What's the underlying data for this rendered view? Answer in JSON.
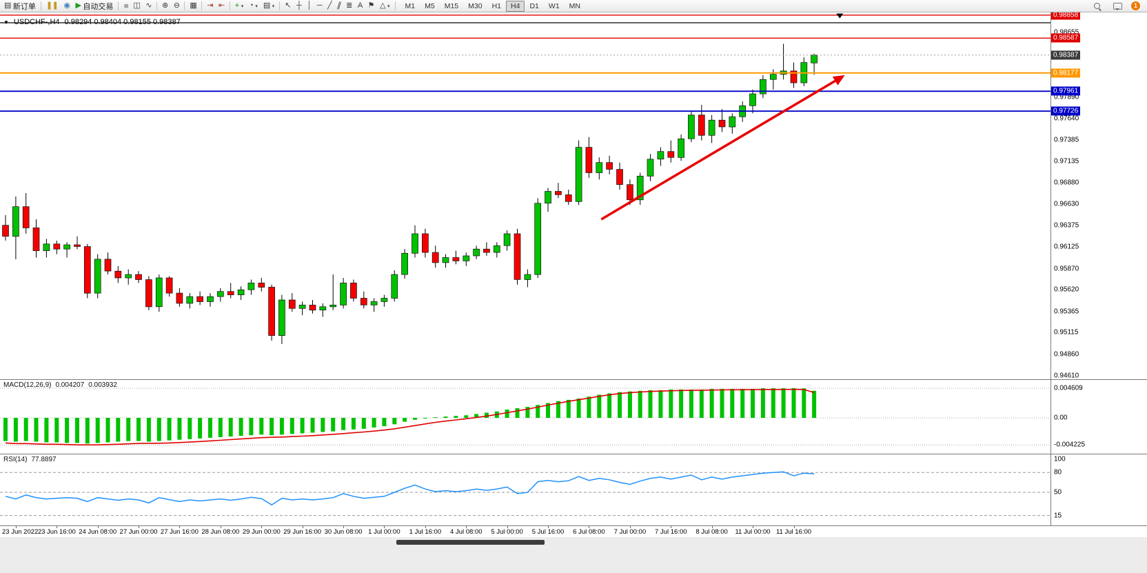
{
  "toolbar": {
    "new_order_label": "新订单",
    "autotrading_label": "自动交易",
    "notification_count": "1",
    "window_icons": [
      {
        "name": "chart-window-icon",
        "glyph": "❚❚",
        "color": "#c8971e"
      },
      {
        "name": "market-watch-icon",
        "glyph": "◉",
        "color": "#3f7fbf"
      }
    ],
    "icon_groups": [
      [
        {
          "name": "bar-chart-icon",
          "glyph": "≡",
          "rot": true
        },
        {
          "name": "candlestick-chart-icon",
          "glyph": "◫"
        },
        {
          "name": "line-chart-icon",
          "glyph": "∿"
        }
      ],
      [
        {
          "name": "zoom-in-icon",
          "glyph": "⊕"
        },
        {
          "name": "zoom-out-icon",
          "glyph": "⊖"
        }
      ],
      [
        {
          "name": "tile-windows-icon",
          "glyph": "▦"
        }
      ],
      [
        {
          "name": "auto-scroll-icon",
          "glyph": "⇥",
          "color": "#a33535"
        },
        {
          "name": "chart-shift-icon",
          "glyph": "⇤",
          "color": "#a33535"
        }
      ],
      [
        {
          "name": "indicators-icon",
          "glyph": "+",
          "color": "#0a8a0a",
          "dropdown": true
        },
        {
          "name": "periods-icon",
          "glyph": "◔",
          "dropdown": true
        },
        {
          "name": "templates-icon",
          "glyph": "▤",
          "dropdown": true
        }
      ],
      [
        {
          "name": "cursor-icon",
          "glyph": "↖"
        },
        {
          "name": "crosshair-icon",
          "glyph": "┼"
        },
        {
          "name": "vertical-line-icon",
          "glyph": "│"
        },
        {
          "name": "horizontal-line-icon",
          "glyph": "─"
        },
        {
          "name": "trendline-icon",
          "glyph": "╱"
        },
        {
          "name": "channel-icon",
          "glyph": "∥",
          "tilt": true
        },
        {
          "name": "fibonacci-icon",
          "glyph": "≣"
        },
        {
          "name": "text-icon",
          "glyph": "A"
        },
        {
          "name": "arrows-icon",
          "glyph": "⚑"
        },
        {
          "name": "shapes-icon",
          "glyph": "△",
          "dropdown": true
        }
      ]
    ],
    "timeframes": [
      "M1",
      "M5",
      "M15",
      "M30",
      "H1",
      "H4",
      "D1",
      "W1",
      "MN"
    ],
    "active_timeframe": "H4"
  },
  "chart": {
    "title": "USDCHF-,H4",
    "ohlc_text": "0.98294 0.98404 0.98155 0.98387"
  },
  "chart_data": {
    "type": "candlestick",
    "symbol": "USDCHF-",
    "timeframe": "H4",
    "current_ohlc": {
      "open": 0.98294,
      "high": 0.98404,
      "low": 0.98155,
      "close": 0.98387
    },
    "price_range": {
      "max": 0.9889,
      "min": 0.94565
    },
    "colors": {
      "bull": "#00c200",
      "bear": "#f40000",
      "wick": "#000000",
      "background": "#ffffff"
    },
    "candles": [
      [
        0.9638,
        0.965,
        0.962,
        0.9625
      ],
      [
        0.9625,
        0.9672,
        0.9598,
        0.966
      ],
      [
        0.966,
        0.9676,
        0.9628,
        0.9635
      ],
      [
        0.9635,
        0.9645,
        0.96,
        0.9608
      ],
      [
        0.9608,
        0.9622,
        0.96,
        0.9616
      ],
      [
        0.9616,
        0.962,
        0.9604,
        0.961
      ],
      [
        0.961,
        0.9618,
        0.96,
        0.9615
      ],
      [
        0.9615,
        0.9625,
        0.961,
        0.9613
      ],
      [
        0.9613,
        0.9616,
        0.9552,
        0.9558
      ],
      [
        0.9558,
        0.9604,
        0.9552,
        0.9598
      ],
      [
        0.9598,
        0.9606,
        0.958,
        0.9584
      ],
      [
        0.9584,
        0.959,
        0.957,
        0.9576
      ],
      [
        0.9576,
        0.9586,
        0.9568,
        0.958
      ],
      [
        0.958,
        0.9584,
        0.957,
        0.9574
      ],
      [
        0.9574,
        0.9578,
        0.9538,
        0.9542
      ],
      [
        0.9542,
        0.958,
        0.9536,
        0.9576
      ],
      [
        0.9576,
        0.9578,
        0.9554,
        0.9558
      ],
      [
        0.9558,
        0.9564,
        0.9542,
        0.9546
      ],
      [
        0.9546,
        0.9558,
        0.954,
        0.9554
      ],
      [
        0.9554,
        0.956,
        0.9544,
        0.9548
      ],
      [
        0.9548,
        0.9558,
        0.9542,
        0.9554
      ],
      [
        0.9554,
        0.9564,
        0.9548,
        0.956
      ],
      [
        0.956,
        0.957,
        0.9552,
        0.9556
      ],
      [
        0.9556,
        0.9566,
        0.955,
        0.9562
      ],
      [
        0.9562,
        0.9574,
        0.9556,
        0.957
      ],
      [
        0.957,
        0.9576,
        0.956,
        0.9565
      ],
      [
        0.9565,
        0.9568,
        0.9502,
        0.9508
      ],
      [
        0.9508,
        0.9556,
        0.9498,
        0.955
      ],
      [
        0.955,
        0.9558,
        0.9536,
        0.954
      ],
      [
        0.954,
        0.9548,
        0.9532,
        0.9544
      ],
      [
        0.9544,
        0.955,
        0.9534,
        0.9538
      ],
      [
        0.9538,
        0.9546,
        0.953,
        0.9542
      ],
      [
        0.9542,
        0.958,
        0.9538,
        0.9544
      ],
      [
        0.9544,
        0.9576,
        0.954,
        0.957
      ],
      [
        0.957,
        0.9574,
        0.9548,
        0.9552
      ],
      [
        0.9552,
        0.956,
        0.954,
        0.9544
      ],
      [
        0.9544,
        0.9552,
        0.9536,
        0.9548
      ],
      [
        0.9548,
        0.9556,
        0.9542,
        0.9552
      ],
      [
        0.9552,
        0.9585,
        0.9548,
        0.958
      ],
      [
        0.958,
        0.961,
        0.9575,
        0.9605
      ],
      [
        0.9605,
        0.9638,
        0.96,
        0.9628
      ],
      [
        0.9628,
        0.9634,
        0.96,
        0.9606
      ],
      [
        0.9606,
        0.9614,
        0.9588,
        0.9594
      ],
      [
        0.9594,
        0.9604,
        0.9588,
        0.96
      ],
      [
        0.96,
        0.9608,
        0.9592,
        0.9596
      ],
      [
        0.9596,
        0.9606,
        0.959,
        0.9602
      ],
      [
        0.9602,
        0.9614,
        0.9598,
        0.961
      ],
      [
        0.961,
        0.9618,
        0.9602,
        0.9606
      ],
      [
        0.9606,
        0.9618,
        0.96,
        0.9614
      ],
      [
        0.9614,
        0.9632,
        0.9608,
        0.9628
      ],
      [
        0.9628,
        0.9634,
        0.9568,
        0.9574
      ],
      [
        0.9574,
        0.9586,
        0.9565,
        0.958
      ],
      [
        0.958,
        0.967,
        0.9576,
        0.9664
      ],
      [
        0.9664,
        0.9682,
        0.9654,
        0.9678
      ],
      [
        0.9678,
        0.9688,
        0.967,
        0.9674
      ],
      [
        0.9674,
        0.968,
        0.9662,
        0.9666
      ],
      [
        0.9666,
        0.9738,
        0.9662,
        0.973
      ],
      [
        0.973,
        0.9742,
        0.9694,
        0.97
      ],
      [
        0.97,
        0.9718,
        0.9692,
        0.9712
      ],
      [
        0.9712,
        0.972,
        0.9698,
        0.9704
      ],
      [
        0.9704,
        0.9712,
        0.968,
        0.9686
      ],
      [
        0.9686,
        0.9692,
        0.9662,
        0.9668
      ],
      [
        0.9668,
        0.97,
        0.9662,
        0.9696
      ],
      [
        0.9696,
        0.9722,
        0.969,
        0.9716
      ],
      [
        0.9716,
        0.973,
        0.9708,
        0.9725
      ],
      [
        0.9725,
        0.9738,
        0.9712,
        0.9718
      ],
      [
        0.9718,
        0.9745,
        0.9714,
        0.974
      ],
      [
        0.974,
        0.9772,
        0.9736,
        0.9768
      ],
      [
        0.9768,
        0.978,
        0.9738,
        0.9744
      ],
      [
        0.9744,
        0.9768,
        0.9735,
        0.9762
      ],
      [
        0.9762,
        0.9775,
        0.9748,
        0.9754
      ],
      [
        0.9754,
        0.977,
        0.9746,
        0.9766
      ],
      [
        0.9766,
        0.9784,
        0.976,
        0.9779
      ],
      [
        0.9779,
        0.9798,
        0.977,
        0.9793
      ],
      [
        0.9793,
        0.9815,
        0.9788,
        0.981
      ],
      [
        0.981,
        0.9822,
        0.9798,
        0.9816
      ],
      [
        0.9816,
        0.9852,
        0.981,
        0.982
      ],
      [
        0.982,
        0.983,
        0.98,
        0.9806
      ],
      [
        0.9806,
        0.9836,
        0.9802,
        0.983
      ],
      [
        0.98294,
        0.98404,
        0.98155,
        0.98387
      ]
    ],
    "x_labels": [
      "23 Jun 2022",
      "23 Jun 16:00",
      "24 Jun 08:00",
      "27 Jun 00:00",
      "27 Jun 16:00",
      "28 Jun 08:00",
      "29 Jun 00:00",
      "29 Jun 16:00",
      "30 Jun 08:00",
      "1 Jul 00:00",
      "1 Jul 16:00",
      "4 Jul 08:00",
      "5 Jul 00:00",
      "5 Jul 16:00",
      "6 Jul 08:00",
      "7 Jul 00:00",
      "7 Jul 16:00",
      "8 Jul 08:00",
      "11 Jul 00:00",
      "11 Jul 16:00"
    ],
    "x_label_first_bar": 1,
    "x_label_step": 4,
    "price_axis": {
      "labels": [
        0.98655,
        0.98147,
        0.9789,
        0.9764,
        0.97385,
        0.97135,
        0.9688,
        0.9663,
        0.96375,
        0.96125,
        0.9587,
        0.9562,
        0.95365,
        0.95115,
        0.9486,
        0.9461
      ],
      "boxes": [
        {
          "price": 0.98858,
          "color": "#e00000",
          "name": "alert-price-box"
        },
        {
          "price": 0.98587,
          "color": "#e00000",
          "name": "resistance-price-box"
        },
        {
          "price": 0.98387,
          "color": "#3c3c3c",
          "name": "bid-price-box"
        },
        {
          "price": 0.98177,
          "color": "#ff9900",
          "name": "orange-level-price-box"
        },
        {
          "price": 0.97961,
          "color": "#0000c8",
          "name": "support-price-box"
        },
        {
          "price": 0.97726,
          "color": "#0000c8",
          "name": "support-price-box"
        }
      ]
    },
    "hlines": [
      {
        "price": 0.98858,
        "color": "#e00000",
        "width": 1.4
      },
      {
        "price": 0.98768,
        "color": "#000000",
        "width": 1.2
      },
      {
        "price": 0.98587,
        "color": "#e00000",
        "width": 1.4
      },
      {
        "price": 0.98177,
        "color": "#ff9900",
        "width": 2
      },
      {
        "price": 0.97961,
        "color": "#0000c8",
        "width": 1.8
      },
      {
        "price": 0.97726,
        "color": "#0000c8",
        "width": 1.8
      }
    ],
    "bid_line": {
      "price": 0.98387,
      "color": "#999999",
      "style": "dotted"
    },
    "trend_arrow": {
      "from_bar": 58.2,
      "from_price": 0.9645,
      "to_bar": 82,
      "to_price": 0.9815,
      "color": "#e80000",
      "width": 3.5
    },
    "down_marker": {
      "bar": 81.5,
      "price": 0.9882,
      "color": "#000000"
    },
    "indicators": {
      "macd": {
        "label": "MACD(12,26,9)",
        "value_main": "0.004207",
        "value_signal": "0.003932",
        "hist_color": "#00c200",
        "signal_color": "#e00000",
        "axis": [
          {
            "v": 0.004609,
            "t": "0.004609"
          },
          {
            "v": 0,
            "t": "0.00"
          },
          {
            "v": -0.004225,
            "t": "-0.004225"
          }
        ],
        "hist": [
          -0.0036,
          -0.0037,
          -0.0036,
          -0.0037,
          -0.0038,
          -0.0038,
          -0.0039,
          -0.0039,
          -0.004,
          -0.0039,
          -0.0038,
          -0.0037,
          -0.0036,
          -0.0036,
          -0.0037,
          -0.0036,
          -0.0035,
          -0.0034,
          -0.0033,
          -0.0032,
          -0.0031,
          -0.003,
          -0.0029,
          -0.0028,
          -0.0027,
          -0.0026,
          -0.0027,
          -0.0026,
          -0.0025,
          -0.0024,
          -0.0023,
          -0.0022,
          -0.0021,
          -0.0019,
          -0.0018,
          -0.0017,
          -0.0015,
          -0.0013,
          -0.001,
          -0.0006,
          -0.0003,
          -0.0001,
          0.0001,
          0.0002,
          0.0003,
          0.0004,
          0.0006,
          0.0008,
          0.001,
          0.0013,
          0.0015,
          0.0017,
          0.002,
          0.0023,
          0.0026,
          0.0028,
          0.003,
          0.0033,
          0.0036,
          0.0038,
          0.004,
          0.0041,
          0.0042,
          0.0043,
          0.0043,
          0.0044,
          0.0044,
          0.0044,
          0.0044,
          0.0045,
          0.0045,
          0.0045,
          0.0045,
          0.0045,
          0.0046,
          0.0046,
          0.0046,
          0.00461,
          0.00458,
          0.004207
        ],
        "signal": [
          -0.0039,
          -0.004,
          -0.004,
          -0.00405,
          -0.0041,
          -0.0041,
          -0.00415,
          -0.0042,
          -0.0042,
          -0.0042,
          -0.00415,
          -0.0041,
          -0.00404,
          -0.00398,
          -0.00396,
          -0.00394,
          -0.0039,
          -0.00384,
          -0.00376,
          -0.00368,
          -0.00358,
          -0.00348,
          -0.00338,
          -0.00328,
          -0.00318,
          -0.00308,
          -0.00302,
          -0.00298,
          -0.00292,
          -0.00284,
          -0.00276,
          -0.00266,
          -0.00256,
          -0.00244,
          -0.00232,
          -0.0022,
          -0.00206,
          -0.0019,
          -0.0017,
          -0.00146,
          -0.0012,
          -0.00094,
          -0.0007,
          -0.0005,
          -0.00032,
          -0.00014,
          6e-05,
          0.00028,
          0.00052,
          0.0008,
          0.00108,
          0.00136,
          0.00166,
          0.00198,
          0.00228,
          0.00256,
          0.00282,
          0.00308,
          0.00334,
          0.00358,
          0.00378,
          0.00392,
          0.00402,
          0.0041,
          0.00416,
          0.00421,
          0.00425,
          0.00428,
          0.0043,
          0.00432,
          0.00434,
          0.00436,
          0.00437,
          0.00438,
          0.0044,
          0.00441,
          0.00442,
          0.00443,
          0.0044,
          0.003932
        ]
      },
      "rsi": {
        "label": "RSI(14)",
        "value": "77.8897",
        "color": "#1e90ff",
        "axis": [
          {
            "v": 100,
            "t": "100"
          },
          {
            "v": 80,
            "t": "80"
          },
          {
            "v": 50,
            "t": "50"
          },
          {
            "v": 15,
            "t": "15"
          }
        ],
        "levels": [
          80,
          50,
          15
        ],
        "values": [
          44,
          40,
          46,
          42,
          40,
          41,
          42,
          41,
          36,
          42,
          40,
          38,
          40,
          38.5,
          34,
          42,
          39,
          36,
          38.5,
          37,
          38.5,
          40,
          38,
          40,
          42.5,
          40.5,
          31,
          41,
          38.5,
          40,
          38.5,
          40,
          42,
          48,
          44,
          41,
          42.5,
          44,
          50,
          56,
          61,
          55,
          51,
          52.5,
          51,
          52.5,
          55,
          53,
          55,
          58,
          48,
          50,
          66,
          68,
          66,
          67.5,
          74,
          68,
          71,
          69,
          65,
          62,
          67,
          71,
          73,
          70,
          73,
          76,
          69,
          73,
          70,
          73,
          75,
          77,
          79,
          80,
          81,
          75,
          79,
          77.89
        ]
      }
    }
  }
}
